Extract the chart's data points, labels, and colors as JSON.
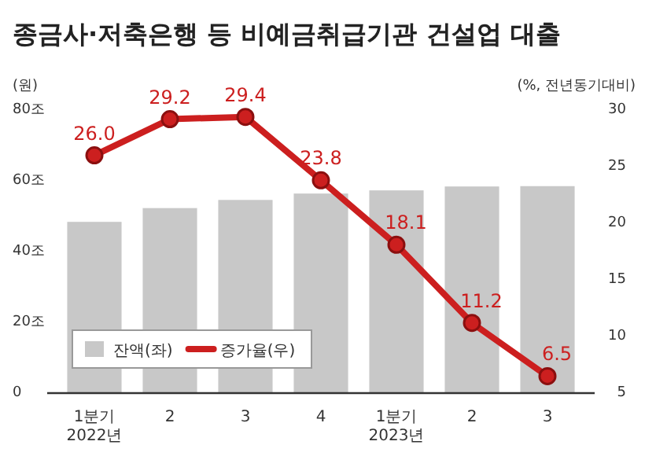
{
  "chart_data": {
    "type": "bar",
    "title": "종금사·저축은행 등 비예금취급기관 건설업 대출",
    "ylabel": "(원)",
    "y2label": "(%, 전년동기대비)",
    "categories": [
      "1분기\n2022년",
      "2",
      "3",
      "4",
      "1분기\n2023년",
      "2",
      "3"
    ],
    "series": [
      {
        "name": "잔액(좌)",
        "color": "#c8c8c8",
        "values": [
          48.4,
          52.3,
          54.6,
          56.4,
          57.3,
          58.4,
          58.5
        ]
      },
      {
        "name": "증가율(우)",
        "type": "line",
        "axis": "y2",
        "color": "#cc1f1f",
        "marker": "circle",
        "values": [
          26.0,
          29.2,
          29.4,
          23.8,
          18.1,
          11.2,
          6.5
        ],
        "value_labels": [
          "26.0",
          "29.2",
          "29.4",
          "23.8",
          "18.1",
          "11.2",
          "6.5"
        ]
      }
    ],
    "ylim": [
      0,
      80
    ],
    "yticks": [
      0,
      {
        "value": 20,
        "label": "20조"
      },
      {
        "value": 40,
        "label": "40조"
      },
      {
        "value": 60,
        "label": "60조"
      },
      {
        "value": 80,
        "label": "80조"
      }
    ],
    "y2lim": [
      5,
      30
    ],
    "y2ticks": [
      5,
      10,
      15,
      20,
      25,
      30
    ],
    "legend": "bottom left",
    "grid": false
  }
}
